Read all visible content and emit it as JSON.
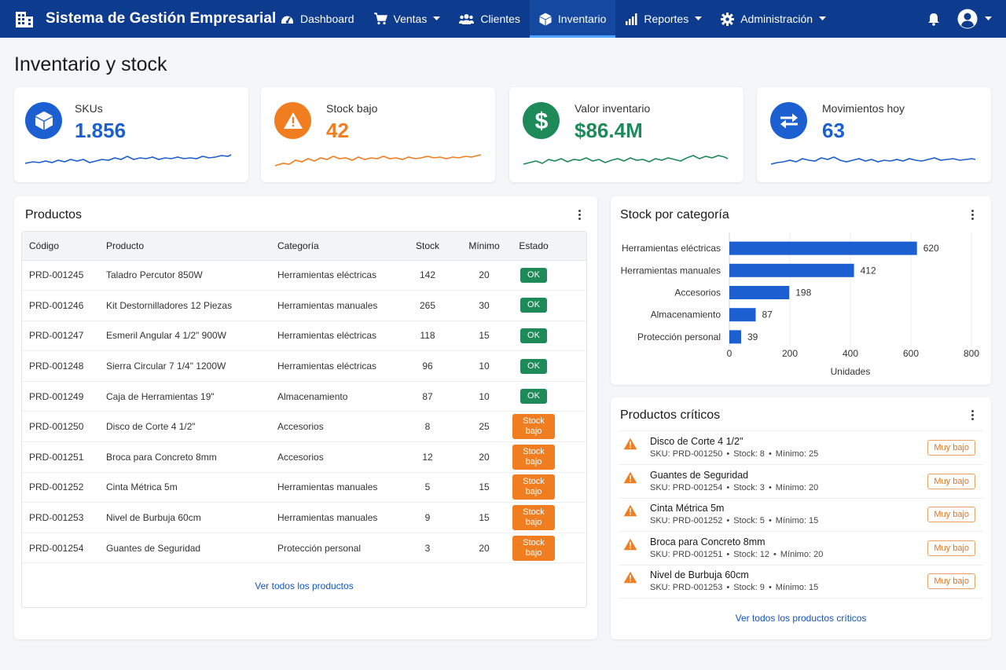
{
  "app": {
    "title": "Sistema de Gestión Empresarial"
  },
  "nav": {
    "items": [
      {
        "label": "Dashboard",
        "icon": "gauge-icon"
      },
      {
        "label": "Ventas",
        "icon": "cart-icon",
        "dropdown": true
      },
      {
        "label": "Clientes",
        "icon": "users-icon"
      },
      {
        "label": "Inventario",
        "icon": "box-icon",
        "active": true
      },
      {
        "label": "Reportes",
        "icon": "bar-chart-icon",
        "dropdown": true
      },
      {
        "label": "Administración",
        "icon": "gear-icon",
        "dropdown": true
      }
    ]
  },
  "page": {
    "title": "Inventario y stock"
  },
  "kpis": [
    {
      "label": "SKUs",
      "value": "1.856",
      "icon": "box-icon",
      "color": "#1b5fd0"
    },
    {
      "label": "Stock bajo",
      "value": "42",
      "icon": "warning-icon",
      "color": "#f07d1f"
    },
    {
      "label": "Valor inventario",
      "value": "$86.4M",
      "icon": "dollar-icon",
      "color": "#1e8a5a"
    },
    {
      "label": "Movimientos hoy",
      "value": "63",
      "icon": "swap-icon",
      "color": "#1b5fd0"
    }
  ],
  "products": {
    "title": "Productos",
    "columns": [
      "Código",
      "Producto",
      "Categoría",
      "Stock",
      "Mínimo",
      "Estado"
    ],
    "rows": [
      {
        "code": "PRD-001245",
        "name": "Taladro Percutor 850W",
        "category": "Herramientas eléctricas",
        "stock": "142",
        "min": "20",
        "status": "OK",
        "level": "ok"
      },
      {
        "code": "PRD-001246",
        "name": "Kit Destornilladores 12 Piezas",
        "category": "Herramientas manuales",
        "stock": "265",
        "min": "30",
        "status": "OK",
        "level": "ok"
      },
      {
        "code": "PRD-001247",
        "name": "Esmeril Angular 4 1/2\" 900W",
        "category": "Herramientas eléctricas",
        "stock": "118",
        "min": "15",
        "status": "OK",
        "level": "ok"
      },
      {
        "code": "PRD-001248",
        "name": "Sierra Circular 7 1/4\" 1200W",
        "category": "Herramientas eléctricas",
        "stock": "96",
        "min": "10",
        "status": "OK",
        "level": "ok"
      },
      {
        "code": "PRD-001249",
        "name": "Caja  de Herramientas 19\"",
        "category": "Almacenamiento",
        "stock": "87",
        "min": "10",
        "status": "OK",
        "level": "ok"
      },
      {
        "code": "PRD-001250",
        "name": "Disco de Corte 4 1/2\"",
        "category": "Accesorios",
        "stock": "8",
        "min": "25",
        "status": "Stock bajo",
        "level": "low"
      },
      {
        "code": "PRD-001251",
        "name": "Broca para Concreto 8mm",
        "category": "Accesorios",
        "stock": "12",
        "min": "20",
        "status": "Stock bajo",
        "level": "low"
      },
      {
        "code": "PRD-001252",
        "name": "Cinta Métrica 5m",
        "category": "Herramientas manuales",
        "stock": "5",
        "min": "15",
        "status": "Stock bajo",
        "level": "low"
      },
      {
        "code": "PRD-001253",
        "name": "Nivel de Burbuja 60cm",
        "category": "Herramientas manuales",
        "stock": "9",
        "min": "15",
        "status": "Stock bajo",
        "level": "low"
      },
      {
        "code": "PRD-001254",
        "name": "Guantes de Seguridad",
        "category": "Protección personal",
        "stock": "3",
        "min": "20",
        "status": "Stock bajo",
        "level": "low"
      }
    ],
    "view_all": "Ver todos los productos"
  },
  "category_chart": {
    "title": "Stock por categoría"
  },
  "chart_data": {
    "type": "bar",
    "orientation": "horizontal",
    "categories": [
      "Herramientas eléctricas",
      "Herramientas manuales",
      "Accesorios",
      "Almacenamiento",
      "Protección personal"
    ],
    "values": [
      620,
      412,
      198,
      87,
      39
    ],
    "xlabel": "Unidades",
    "xlim": [
      0,
      800
    ],
    "xticks": [
      0,
      200,
      400,
      600,
      800
    ],
    "bar_color": "#1b5fd0"
  },
  "critical": {
    "title": "Productos críticos",
    "items": [
      {
        "name": "Disco de Corte 4 1/2\"",
        "sku": "SKU: PRD-001250",
        "stock": "Stock: 8",
        "min": "Mínimo: 25",
        "badge": "Muy bajo"
      },
      {
        "name": "Guantes de Seguridad",
        "sku": "SKU: PRD-001254",
        "stock": "Stock: 3",
        "min": "Mínimo: 20",
        "badge": "Muy bajo"
      },
      {
        "name": "Cinta Métrica 5m",
        "sku": "SKU: PRD-001252",
        "stock": "Stock: 5",
        "min": "Mínimo: 15",
        "badge": "Muy bajo"
      },
      {
        "name": "Broca para Concreto 8mm",
        "sku": "SKU: PRD-001251",
        "stock": "Stock: 12",
        "min": "Mínimo: 20",
        "badge": "Muy bajo"
      },
      {
        "name": "Nivel de Burbuja 60cm",
        "sku": "SKU: PRD-001253",
        "stock": "Stock: 9",
        "min": "Mínimo: 15",
        "badge": "Muy bajo"
      }
    ],
    "view_all": "Ver todos los productos críticos"
  }
}
